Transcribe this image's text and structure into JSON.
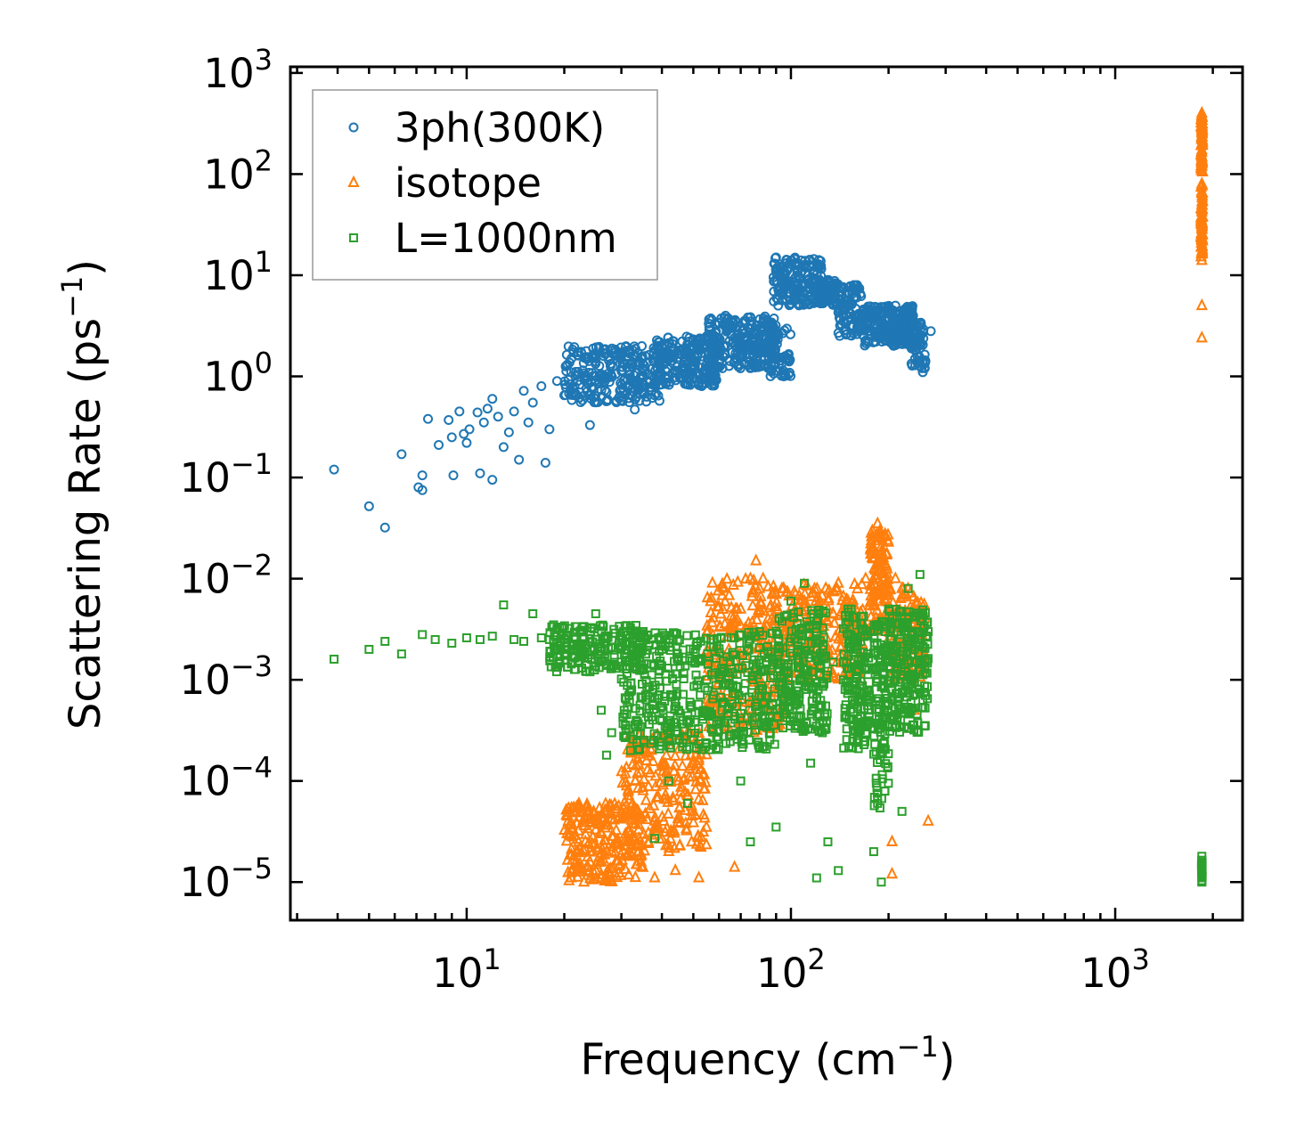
{
  "chart_data": {
    "type": "scatter",
    "xscale": "log",
    "yscale": "log",
    "xlabel": "Frequency (cm",
    "xlabel_sup": "−1",
    "xlabel_end": ")",
    "ylabel": "Scattering Rate (ps",
    "ylabel_sup": "−1",
    "ylabel_end": ")",
    "xlim": [
      2.86,
      2470
    ],
    "ylim": [
      4.2e-06,
      1150
    ],
    "xticks": [
      {
        "v": 10,
        "base": "10",
        "exp": "1"
      },
      {
        "v": 100,
        "base": "10",
        "exp": "2"
      },
      {
        "v": 1000,
        "base": "10",
        "exp": "3"
      }
    ],
    "yticks": [
      {
        "v": 1000,
        "base": "10",
        "exp": "3"
      },
      {
        "v": 100,
        "base": "10",
        "exp": "2"
      },
      {
        "v": 10,
        "base": "10",
        "exp": "1"
      },
      {
        "v": 1,
        "base": "10",
        "exp": "0"
      },
      {
        "v": 0.1,
        "base": "10",
        "exp": "−1"
      },
      {
        "v": 0.01,
        "base": "10",
        "exp": "−2"
      },
      {
        "v": 0.001,
        "base": "10",
        "exp": "−3"
      },
      {
        "v": 0.0001,
        "base": "10",
        "exp": "−4"
      },
      {
        "v": 1e-05,
        "base": "10",
        "exp": "−5"
      }
    ],
    "legend_position": "top-left",
    "series": [
      {
        "name": "3ph(300K)",
        "marker": "circle",
        "color": "#1f77b4",
        "points": [
          [
            3.9,
            0.12
          ],
          [
            5,
            0.052
          ],
          [
            5.6,
            0.032
          ],
          [
            6.3,
            0.17
          ],
          [
            7.1,
            0.08
          ],
          [
            7.3,
            0.075
          ],
          [
            7.3,
            0.105
          ],
          [
            7.6,
            0.38
          ],
          [
            8.2,
            0.21
          ],
          [
            8.8,
            0.37
          ],
          [
            9,
            0.25
          ],
          [
            9.1,
            0.105
          ],
          [
            9.5,
            0.45
          ],
          [
            9.8,
            0.27
          ],
          [
            10,
            0.22
          ],
          [
            10.2,
            0.3
          ],
          [
            10.8,
            0.44
          ],
          [
            11,
            0.11
          ],
          [
            11.3,
            0.35
          ],
          [
            11.6,
            0.48
          ],
          [
            12,
            0.095
          ],
          [
            12,
            0.6
          ],
          [
            12.5,
            0.4
          ],
          [
            13,
            0.2
          ],
          [
            13.5,
            0.28
          ],
          [
            14,
            0.45
          ],
          [
            14.5,
            0.15
          ],
          [
            15,
            0.72
          ],
          [
            15.5,
            0.35
          ],
          [
            16,
            0.55
          ],
          [
            17,
            0.8
          ],
          [
            17.5,
            0.14
          ],
          [
            18,
            0.3
          ],
          [
            19,
            0.9
          ],
          [
            20,
            0.65
          ],
          [
            21,
            1.1
          ],
          [
            22,
            0.9
          ],
          [
            24,
            0.33
          ],
          [
            25,
            1.4
          ],
          [
            27,
            0.7
          ],
          [
            30,
            1.6
          ],
          [
            33,
            0.47
          ],
          [
            35,
            1.2
          ],
          [
            38,
            0.65
          ],
          [
            40,
            1.5
          ],
          [
            45,
            1.8
          ],
          [
            50,
            2.0
          ],
          [
            55,
            2.5
          ],
          [
            60,
            2.8
          ],
          [
            65,
            3.0
          ],
          [
            70,
            2.5
          ],
          [
            75,
            3.5
          ],
          [
            80,
            2.2
          ],
          [
            85,
            2.8
          ],
          [
            90,
            1.5
          ],
          [
            95,
            1.0
          ],
          [
            90,
            15
          ],
          [
            95,
            12
          ],
          [
            100,
            14
          ],
          [
            105,
            10
          ],
          [
            110,
            8
          ],
          [
            120,
            7
          ],
          [
            130,
            8
          ],
          [
            135,
            7
          ],
          [
            145,
            4
          ],
          [
            150,
            5
          ],
          [
            160,
            8
          ],
          [
            170,
            3
          ],
          [
            180,
            2.2
          ],
          [
            190,
            4
          ],
          [
            200,
            3
          ],
          [
            210,
            5
          ],
          [
            220,
            2.5
          ],
          [
            230,
            3
          ],
          [
            240,
            2
          ],
          [
            250,
            1.4
          ],
          [
            255,
            1.1
          ],
          [
            270,
            2.8
          ]
        ],
        "bands": [
          {
            "x": [
              20,
              40
            ],
            "y": [
              0.55,
              2.0
            ],
            "n": 260
          },
          {
            "x": [
              38,
              60
            ],
            "y": [
              0.8,
              2.5
            ],
            "n": 220
          },
          {
            "x": [
              55,
              90
            ],
            "y": [
              1.2,
              4.0
            ],
            "n": 260
          },
          {
            "x": [
              85,
              100
            ],
            "y": [
              1.0,
              3.0
            ],
            "n": 60
          },
          {
            "x": [
              88,
              125
            ],
            "y": [
              5,
              15
            ],
            "n": 160
          },
          {
            "x": [
              120,
              140
            ],
            "y": [
              5,
              9
            ],
            "n": 80
          },
          {
            "x": [
              140,
              165
            ],
            "y": [
              2.5,
              8
            ],
            "n": 90
          },
          {
            "x": [
              165,
              240
            ],
            "y": [
              2.0,
              5.0
            ],
            "n": 240
          },
          {
            "x": [
              235,
              260
            ],
            "y": [
              1.2,
              3.5
            ],
            "n": 60
          }
        ]
      },
      {
        "name": "isotope",
        "marker": "triangle",
        "color": "#ff7f0e",
        "points": [
          [
            21,
            1.1e-05
          ],
          [
            22,
            1.5e-05
          ],
          [
            23,
            1e-05
          ],
          [
            24,
            2e-05
          ],
          [
            25,
            1.3e-05
          ],
          [
            26,
            3e-05
          ],
          [
            28,
            2e-05
          ],
          [
            30,
            5e-05
          ],
          [
            32,
            3e-05
          ],
          [
            35,
            8e-05
          ],
          [
            38,
            4e-05
          ],
          [
            38,
            1.1e-05
          ],
          [
            40,
            0.00015
          ],
          [
            42,
            2e-05
          ],
          [
            44,
            1.3e-05
          ],
          [
            45,
            0.0001
          ],
          [
            48,
            0.0003
          ],
          [
            50,
            0.00015
          ],
          [
            52,
            1.1e-05
          ],
          [
            55,
            0.0005
          ],
          [
            58,
            0.002
          ],
          [
            60,
            0.0015
          ],
          [
            65,
            0.003
          ],
          [
            67,
            1.4e-05
          ],
          [
            70,
            0.005
          ],
          [
            75,
            0.01
          ],
          [
            78,
            0.015
          ],
          [
            80,
            0.008
          ],
          [
            85,
            0.004
          ],
          [
            90,
            0.007
          ],
          [
            100,
            0.004
          ],
          [
            110,
            0.006
          ],
          [
            120,
            0.002
          ],
          [
            130,
            0.005
          ],
          [
            140,
            0.009
          ],
          [
            150,
            0.006
          ],
          [
            160,
            0.004
          ],
          [
            170,
            0.01
          ],
          [
            180,
            0.02
          ],
          [
            185,
            0.035
          ],
          [
            190,
            0.015
          ],
          [
            200,
            0.008
          ],
          [
            205,
            2.5e-05
          ],
          [
            205,
            1.2e-05
          ],
          [
            210,
            0.01
          ],
          [
            220,
            0.008
          ],
          [
            230,
            0.004
          ],
          [
            240,
            0.0005
          ],
          [
            265,
            4e-05
          ],
          [
            1850,
            2.4
          ],
          [
            1850,
            5
          ],
          [
            1850,
            14
          ],
          [
            1850,
            17
          ],
          [
            1850,
            22
          ],
          [
            1850,
            30
          ],
          [
            1850,
            50
          ],
          [
            1850,
            80
          ],
          [
            1850,
            120
          ],
          [
            1850,
            200
          ],
          [
            1850,
            300
          ],
          [
            1850,
            400
          ]
        ],
        "bands": [
          {
            "x": [
              20,
              35
            ],
            "y": [
              1e-05,
              6e-05
            ],
            "n": 220
          },
          {
            "x": [
              30,
              55
            ],
            "y": [
              2e-05,
              0.0003
            ],
            "n": 220
          },
          {
            "x": [
              55,
              95
            ],
            "y": [
              0.0003,
              0.01
            ],
            "n": 250
          },
          {
            "x": [
              95,
              170
            ],
            "y": [
              0.001,
              0.009
            ],
            "n": 200
          },
          {
            "x": [
              175,
              200
            ],
            "y": [
              0.003,
              0.03
            ],
            "n": 120
          },
          {
            "x": [
              200,
              260
            ],
            "y": [
              0.001,
              0.008
            ],
            "n": 120
          },
          {
            "x": [
              1840,
              1860
            ],
            "y": [
              15,
              380
            ],
            "n": 120
          }
        ]
      },
      {
        "name": "L=1000nm",
        "marker": "square",
        "color": "#2ca02c",
        "points": [
          [
            3.9,
            0.0016
          ],
          [
            5,
            0.002
          ],
          [
            5.6,
            0.0024
          ],
          [
            6.3,
            0.0018
          ],
          [
            7.3,
            0.0028
          ],
          [
            8,
            0.0025
          ],
          [
            9,
            0.0023
          ],
          [
            10,
            0.0026
          ],
          [
            11,
            0.0025
          ],
          [
            12,
            0.0027
          ],
          [
            13,
            0.0055
          ],
          [
            14,
            0.0025
          ],
          [
            15,
            0.0024
          ],
          [
            16,
            0.0045
          ],
          [
            17,
            0.0026
          ],
          [
            18,
            0.0025
          ],
          [
            20,
            0.0018
          ],
          [
            22,
            0.002
          ],
          [
            24,
            0.0012
          ],
          [
            25,
            0.0045
          ],
          [
            26,
            0.0005
          ],
          [
            27,
            0.00018
          ],
          [
            28,
            0.0003
          ],
          [
            30,
            0.0015
          ],
          [
            32,
            0.0002
          ],
          [
            35,
            0.003
          ],
          [
            36,
            0.0008
          ],
          [
            38,
            2.7e-05
          ],
          [
            40,
            0.002
          ],
          [
            42,
            0.0001
          ],
          [
            45,
            0.0005
          ],
          [
            48,
            6e-05
          ],
          [
            50,
            0.002
          ],
          [
            55,
            0.001
          ],
          [
            60,
            0.0004
          ],
          [
            65,
            0.0015
          ],
          [
            70,
            0.0001
          ],
          [
            75,
            2.5e-05
          ],
          [
            80,
            0.003
          ],
          [
            85,
            0.0005
          ],
          [
            90,
            3.5e-05
          ],
          [
            95,
            0.0012
          ],
          [
            100,
            0.006
          ],
          [
            105,
            0.002
          ],
          [
            110,
            0.009
          ],
          [
            115,
            0.00015
          ],
          [
            120,
            1.1e-05
          ],
          [
            125,
            0.0003
          ],
          [
            130,
            2.5e-05
          ],
          [
            135,
            0.0015
          ],
          [
            140,
            1.3e-05
          ],
          [
            150,
            0.005
          ],
          [
            160,
            0.002
          ],
          [
            170,
            0.0003
          ],
          [
            180,
            2e-05
          ],
          [
            185,
            6e-05
          ],
          [
            190,
            1e-05
          ],
          [
            195,
            0.003
          ],
          [
            200,
            0.005
          ],
          [
            210,
            0.001
          ],
          [
            220,
            5e-05
          ],
          [
            230,
            0.008
          ],
          [
            240,
            0.002
          ],
          [
            250,
            0.011
          ],
          [
            260,
            0.0007
          ],
          [
            1850,
            1e-05
          ],
          [
            1850,
            1.2e-05
          ],
          [
            1850,
            1.5e-05
          ],
          [
            1850,
            1.8e-05
          ]
        ],
        "bands": [
          {
            "x": [
              18,
              35
            ],
            "y": [
              0.0012,
              0.0035
            ],
            "n": 200
          },
          {
            "x": [
              30,
              90
            ],
            "y": [
              0.0002,
              0.003
            ],
            "n": 450
          },
          {
            "x": [
              90,
              130
            ],
            "y": [
              0.0003,
              0.005
            ],
            "n": 220
          },
          {
            "x": [
              145,
              175
            ],
            "y": [
              0.0002,
              0.005
            ],
            "n": 160
          },
          {
            "x": [
              180,
              200
            ],
            "y": [
              5e-05,
              0.004
            ],
            "n": 120
          },
          {
            "x": [
              200,
              265
            ],
            "y": [
              0.0003,
              0.005
            ],
            "n": 200
          },
          {
            "x": [
              1845,
              1855
            ],
            "y": [
              1e-05,
              1.7e-05
            ],
            "n": 20
          }
        ]
      }
    ]
  }
}
